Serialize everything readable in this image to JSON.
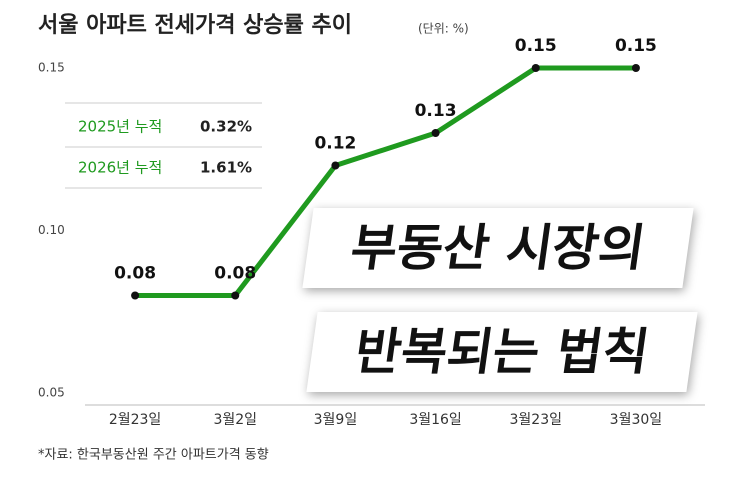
{
  "chart_data": {
    "type": "line",
    "title": "서울 아파트 전세가격 상승률 추이",
    "subtitle": "(단위: %)",
    "categories": [
      "2월23일",
      "3월2일",
      "3월9일",
      "3월16일",
      "3월23일",
      "3월30일"
    ],
    "series": [
      {
        "name": "서울 아파트 전세가격 상승률",
        "color": "#1f9a1f",
        "values": [
          0.08,
          0.08,
          0.12,
          0.13,
          0.15,
          0.15
        ]
      }
    ],
    "ylim": [
      0.05,
      0.15
    ],
    "yticks": [
      0.05,
      {
        "value": 0.1,
        "label": "0.10"
      },
      0.15
    ],
    "inset_table": {
      "rows": [
        [
          "2025년 누적",
          "0.32%"
        ],
        [
          "2026년 누적",
          "1.61%"
        ]
      ]
    },
    "annotations": [
      "부동산 시장의",
      "반복되는 법칙"
    ],
    "source": "*자료: 한국부동산원 주간 아파트가격 동향"
  }
}
